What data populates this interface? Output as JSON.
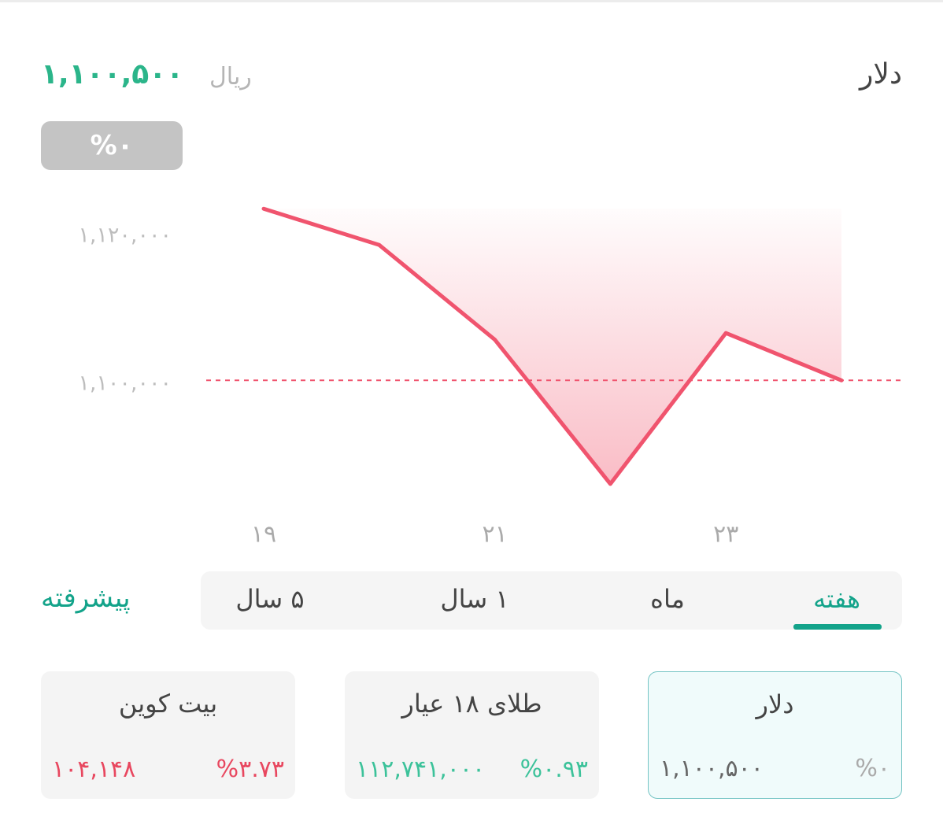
{
  "header": {
    "title": "دلار",
    "price": "۱,۱۰۰,۵۰۰",
    "unit": "ریال",
    "change": "%۰"
  },
  "chart_data": {
    "type": "line",
    "color": "#f0546e",
    "x": [
      19,
      20,
      21,
      22,
      23,
      24
    ],
    "values": [
      1123700,
      1118800,
      1106000,
      1086500,
      1106900,
      1100500
    ],
    "xlim": [
      19,
      24
    ],
    "ylim": [
      1080000,
      1130000
    ],
    "xticks": [
      {
        "value": 19,
        "label": "۱۹"
      },
      {
        "value": 21,
        "label": "۲۱"
      },
      {
        "value": 23,
        "label": "۲۳"
      }
    ],
    "yticks": [
      {
        "value": 1100000,
        "label": "۱,۱۰۰,۰۰۰"
      },
      {
        "value": 1120000,
        "label": "۱,۱۲۰,۰۰۰"
      }
    ]
  },
  "tabs": {
    "items": [
      "هفته",
      "ماه",
      "۱ سال",
      "۵ سال"
    ],
    "advanced": "پیشرفته"
  },
  "cards": [
    {
      "name": "دلار",
      "value": "۱,۱۰۰,۵۰۰",
      "change": "%۰"
    },
    {
      "name": "طلای ۱۸ عیار",
      "value": "۱۱۲,۷۴۱,۰۰۰",
      "change": "%۰.۹۳"
    },
    {
      "name": "بیت کوین",
      "value": "۱۰۴,۱۴۸",
      "change": "%۳.۷۳"
    }
  ]
}
